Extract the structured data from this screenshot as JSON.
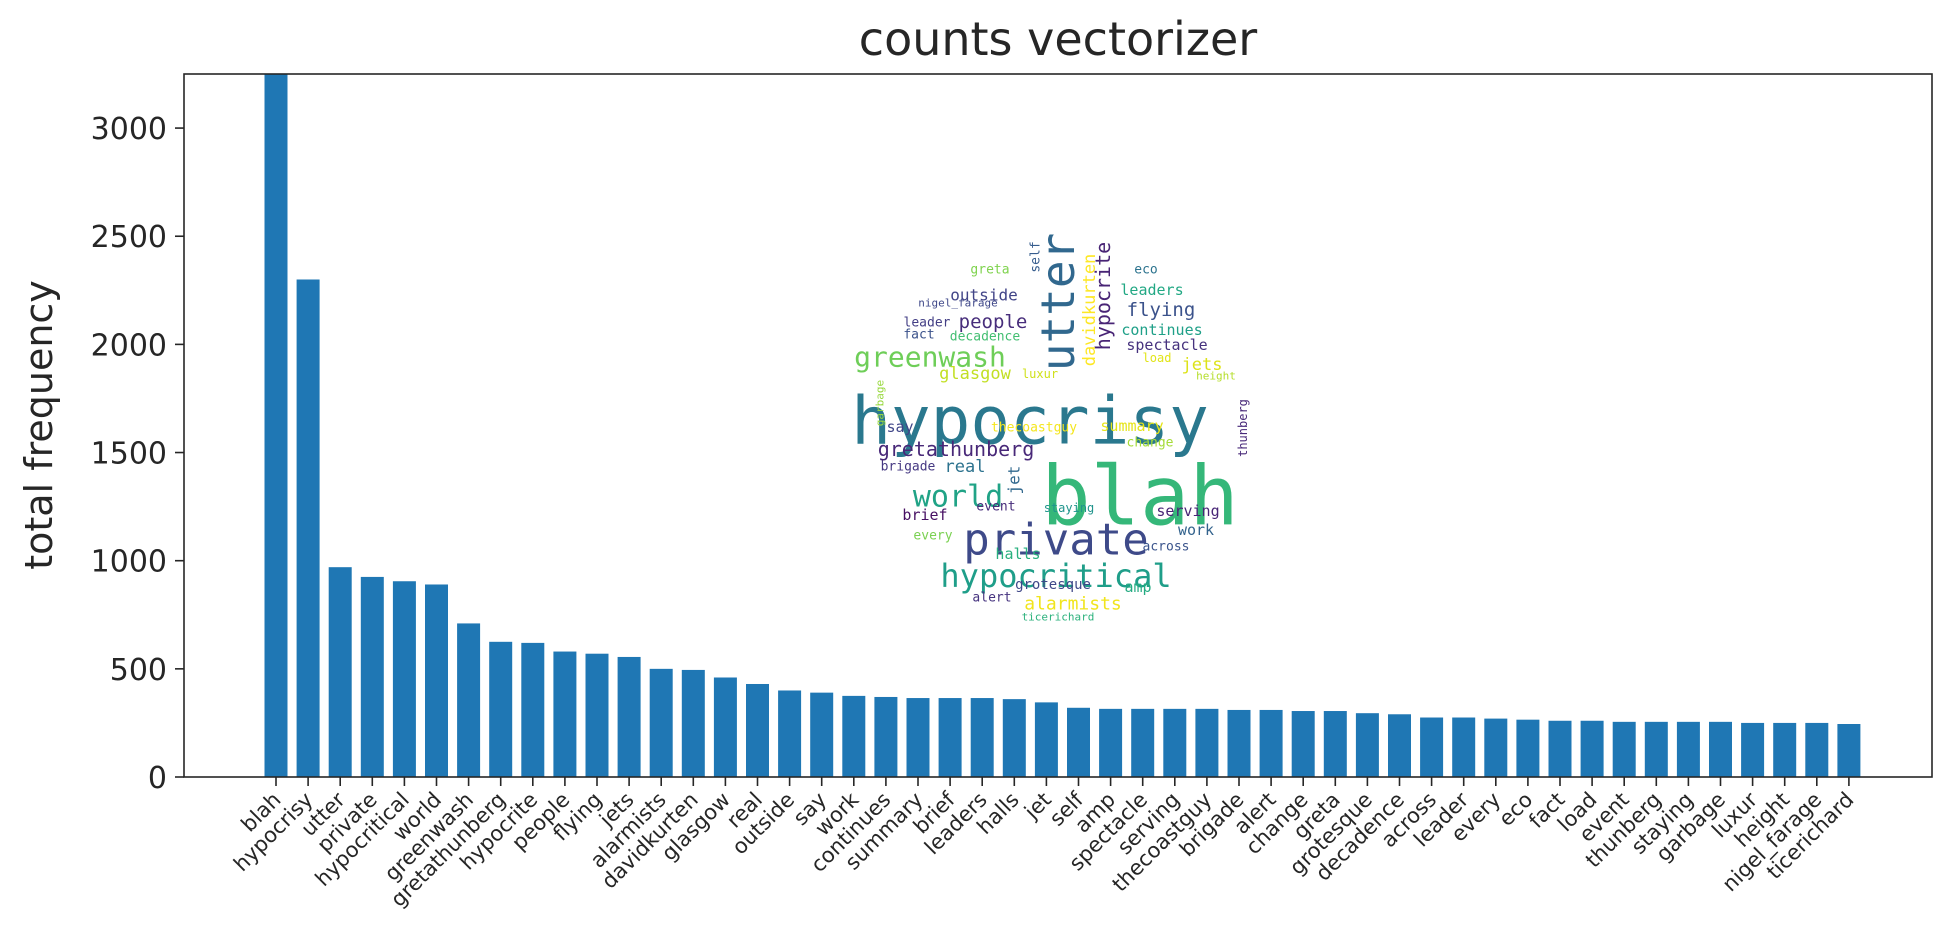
{
  "chart_data": {
    "type": "bar",
    "title": "counts vectorizer",
    "xlabel": "",
    "ylabel": "total frequency",
    "ylim": [
      0,
      3250
    ],
    "yticks": [
      0,
      500,
      1000,
      1500,
      2000,
      2500,
      3000
    ],
    "grid": false,
    "bar_color": "#1f77b4",
    "categories": [
      "blah",
      "hypocrisy",
      "utter",
      "private",
      "hypocritical",
      "world",
      "greenwash",
      "gretathunberg",
      "hypocrite",
      "people",
      "flying",
      "jets",
      "alarmists",
      "davidkurten",
      "glasgow",
      "real",
      "outside",
      "say",
      "work",
      "continues",
      "summary",
      "brief",
      "leaders",
      "halls",
      "jet",
      "self",
      "amp",
      "spectacle",
      "serving",
      "thecoastguy",
      "brigade",
      "alert",
      "change",
      "greta",
      "grotesque",
      "decadence",
      "across",
      "leader",
      "every",
      "eco",
      "fact",
      "load",
      "event",
      "thunberg",
      "staying",
      "garbage",
      "luxur",
      "height",
      "nigel_farage",
      "ticerichard"
    ],
    "values": [
      3250,
      2300,
      970,
      925,
      905,
      890,
      710,
      625,
      620,
      580,
      570,
      555,
      500,
      495,
      460,
      430,
      400,
      390,
      375,
      370,
      365,
      365,
      365,
      360,
      345,
      320,
      315,
      315,
      315,
      315,
      310,
      310,
      305,
      305,
      295,
      290,
      275,
      275,
      270,
      265,
      260,
      260,
      255,
      255,
      255,
      255,
      250,
      250,
      250,
      245
    ]
  },
  "wordcloud": {
    "words": [
      {
        "text": "blah",
        "color": "#35b779"
      },
      {
        "text": "hypocrisy",
        "color": "#2a788e"
      },
      {
        "text": "utter",
        "color": "#31688e"
      },
      {
        "text": "private",
        "color": "#3e4a89"
      },
      {
        "text": "hypocritical",
        "color": "#1f9e89"
      },
      {
        "text": "world",
        "color": "#20a386"
      },
      {
        "text": "greenwash",
        "color": "#6ece58"
      },
      {
        "text": "gretathunberg",
        "color": "#482878"
      },
      {
        "text": "hypocrite",
        "color": "#482475"
      },
      {
        "text": "davidkurten",
        "color": "#fde725"
      },
      {
        "text": "people",
        "color": "#472d7b"
      },
      {
        "text": "flying",
        "color": "#3b528b"
      },
      {
        "text": "outside",
        "color": "#414487"
      },
      {
        "text": "leaders",
        "color": "#22a884"
      },
      {
        "text": "continues",
        "color": "#1fa088"
      },
      {
        "text": "spectacle",
        "color": "#46327e"
      },
      {
        "text": "jets",
        "color": "#dde318"
      },
      {
        "text": "glasgow",
        "color": "#c2df23"
      },
      {
        "text": "say",
        "color": "#404688"
      },
      {
        "text": "summary",
        "color": "#e5e419"
      },
      {
        "text": "real",
        "color": "#2c728e"
      },
      {
        "text": "jet",
        "color": "#31688e"
      },
      {
        "text": "brief",
        "color": "#471063"
      },
      {
        "text": "serving",
        "color": "#482576"
      },
      {
        "text": "work",
        "color": "#33638d"
      },
      {
        "text": "halls",
        "color": "#2ab07f"
      },
      {
        "text": "amp",
        "color": "#25ab82"
      },
      {
        "text": "alarmists",
        "color": "#f1e51d"
      },
      {
        "text": "grotesque",
        "color": "#3f4788"
      },
      {
        "text": "alert",
        "color": "#46337f"
      },
      {
        "text": "change",
        "color": "#a5db36"
      },
      {
        "text": "thecoastguy",
        "color": "#f4e61e"
      },
      {
        "text": "brigade",
        "color": "#453882"
      },
      {
        "text": "event",
        "color": "#472c7a"
      },
      {
        "text": "staying",
        "color": "#1f948c"
      },
      {
        "text": "across",
        "color": "#3a548c"
      },
      {
        "text": "every",
        "color": "#7ad151"
      },
      {
        "text": "greta",
        "color": "#7fd34e"
      },
      {
        "text": "self",
        "color": "#365c8d"
      },
      {
        "text": "eco",
        "color": "#2c738e"
      },
      {
        "text": "nigel_farage",
        "color": "#3f4889"
      },
      {
        "text": "leader",
        "color": "#433e85"
      },
      {
        "text": "fact",
        "color": "#3b528b"
      },
      {
        "text": "decadence",
        "color": "#42be71"
      },
      {
        "text": "luxur",
        "color": "#d0e11c"
      },
      {
        "text": "load",
        "color": "#e1e418"
      },
      {
        "text": "height",
        "color": "#b5de2b"
      },
      {
        "text": "garbage",
        "color": "#98d83e"
      },
      {
        "text": "thunberg",
        "color": "#482979"
      },
      {
        "text": "ticerichard",
        "color": "#2db27d"
      }
    ]
  }
}
